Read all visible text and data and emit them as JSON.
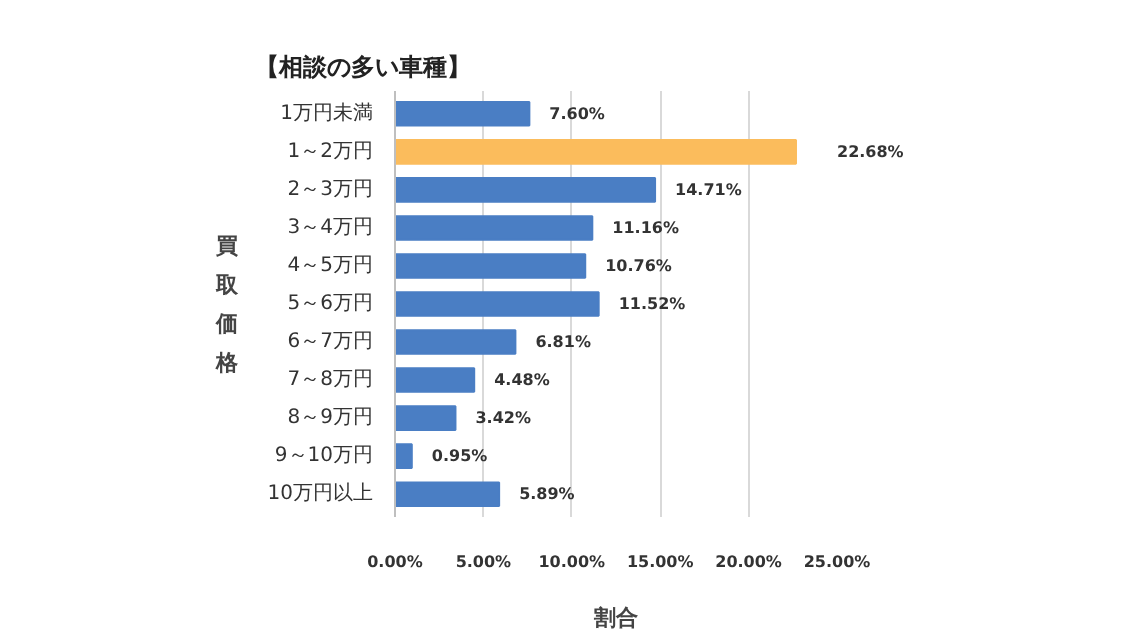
{
  "chart_data": {
    "type": "bar",
    "orientation": "horizontal",
    "title": "【相談の多い車種】",
    "xlabel": "割合",
    "ylabel": "買取価格",
    "categories": [
      "1万円未満",
      "1～2万円",
      "2～3万円",
      "3～4万円",
      "4～5万円",
      "5～6万円",
      "6～7万円",
      "7～8万円",
      "8～9万円",
      "9～10万円",
      "10万円以上"
    ],
    "values": [
      7.6,
      22.68,
      14.71,
      11.16,
      10.76,
      11.52,
      6.81,
      4.48,
      3.42,
      0.95,
      5.89
    ],
    "value_labels": [
      "7.60%",
      "22.68%",
      "14.71%",
      "11.16%",
      "10.76%",
      "11.52%",
      "6.81%",
      "4.48%",
      "3.42%",
      "0.95%",
      "5.89%"
    ],
    "colors": [
      "#4a7ec4",
      "#fbbc5c",
      "#4a7ec4",
      "#4a7ec4",
      "#4a7ec4",
      "#4a7ec4",
      "#4a7ec4",
      "#4a7ec4",
      "#4a7ec4",
      "#4a7ec4",
      "#4a7ec4"
    ],
    "xlim": [
      0,
      25
    ],
    "xticks": [
      {
        "value": 0,
        "label": "0.00%"
      },
      {
        "value": 5,
        "label": "5.00%"
      },
      {
        "value": 10,
        "label": "10.00%"
      },
      {
        "value": 15,
        "label": "15.00%"
      },
      {
        "value": 20,
        "label": "20.00%"
      },
      {
        "value": 25,
        "label": "25.00%"
      }
    ],
    "grid": "x"
  }
}
